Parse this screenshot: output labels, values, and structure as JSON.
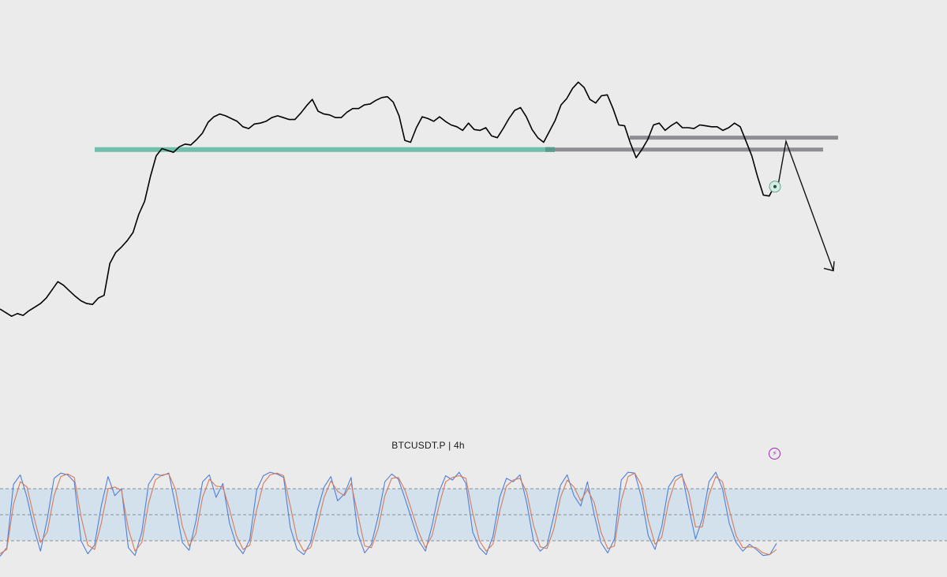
{
  "header": {
    "symbol": "BTCUSDT.P",
    "separator": "|",
    "timeframe": "4h"
  },
  "colors": {
    "background": "#ebebeb",
    "price_line": "#000000",
    "support_zone": "#6fbfaa",
    "broken_level": "#8e8e93",
    "stoch_k": "#4f7fd8",
    "stoch_d": "#d67a5a",
    "stoch_band": "#d3e1ec",
    "alert_icon": "#9c27b0"
  },
  "icons": {
    "alert": "lightning-alert-icon",
    "marker": "circle-marker-icon",
    "projection": "arrow-down-icon"
  },
  "chart_data": [
    {
      "type": "line",
      "series": [
        {
          "values": [
            100.0,
            99.6,
            99.2,
            99.5,
            99.3,
            99.8,
            100.2,
            100.6,
            101.2,
            102.1,
            103.0,
            102.6,
            102.0,
            101.4,
            100.9,
            100.6,
            100.5,
            101.2,
            101.5,
            105.0,
            106.2,
            106.8,
            107.5,
            108.4,
            110.4,
            111.8,
            114.5,
            116.8,
            117.6,
            117.4,
            117.2,
            117.8,
            118.1,
            118.0,
            118.6,
            119.3,
            120.5,
            121.1,
            121.4,
            121.2,
            120.9,
            120.6,
            120.0,
            119.8,
            120.3,
            120.4,
            120.6,
            121.0,
            121.2,
            121.0,
            120.8,
            120.8,
            121.5,
            122.3,
            123.0,
            121.7,
            121.4,
            121.3,
            121.0,
            121.0,
            121.6,
            122.0,
            122.0,
            122.4,
            122.5,
            122.9,
            123.2,
            123.3,
            122.7,
            121.2,
            118.5,
            118.3,
            119.9,
            121.1,
            120.9,
            120.6,
            121.1,
            120.6,
            120.2,
            120.0,
            119.6,
            120.4,
            119.7,
            119.6,
            119.9,
            119.0,
            118.8,
            119.8,
            120.9,
            121.8,
            122.1,
            121.1,
            119.7,
            118.8,
            118.3,
            119.5,
            120.7,
            122.4,
            123.1,
            124.2,
            124.9,
            124.3,
            123.0,
            122.6,
            123.4,
            123.5,
            122.0,
            120.2,
            120.1,
            118.2,
            116.6,
            117.5,
            118.6,
            120.2,
            120.4,
            119.6,
            120.1,
            120.5,
            119.9,
            119.9,
            119.8,
            120.2,
            120.1,
            120.0,
            120.0,
            119.6,
            119.9,
            120.4,
            120.0,
            118.4,
            116.8,
            114.5,
            112.5,
            112.4,
            113.6
          ]
        }
      ],
      "annotations": {
        "support_zone": {
          "price": 117.5
        },
        "broken_support": {
          "price": 117.5
        },
        "resistance_level": {
          "price": 118.8
        },
        "projection": {
          "from": 113.6,
          "peak": 118.4,
          "target": 104.2
        }
      },
      "grid": false,
      "legend": "none"
    },
    {
      "type": "line",
      "ylim": [
        0,
        100
      ],
      "bands": [
        20,
        50,
        80
      ],
      "series": [
        {
          "values": [
            2,
            12,
            85,
            96,
            70,
            35,
            8,
            45,
            92,
            98,
            96,
            88,
            20,
            5,
            15,
            60,
            94,
            72,
            80,
            12,
            3,
            30,
            85,
            97,
            95,
            98,
            60,
            18,
            9,
            42,
            88,
            96,
            70,
            86,
            40,
            15,
            5,
            22,
            78,
            95,
            99,
            97,
            93,
            35,
            10,
            4,
            18,
            55,
            82,
            94,
            66,
            74,
            93,
            28,
            6,
            16,
            48,
            88,
            97,
            91,
            68,
            44,
            20,
            8,
            38,
            76,
            95,
            90,
            99,
            86,
            30,
            12,
            4,
            25,
            70,
            92,
            88,
            96,
            64,
            20,
            8,
            15,
            48,
            84,
            96,
            72,
            60,
            88,
            50,
            18,
            6,
            22,
            90,
            99,
            98,
            70,
            26,
            10,
            36,
            82,
            94,
            97,
            58,
            22,
            45,
            88,
            99,
            80,
            40,
            18,
            8,
            16,
            10,
            3,
            4,
            17
          ]
        },
        {
          "values": [
            5,
            10,
            62,
            88,
            82,
            48,
            18,
            30,
            72,
            94,
            97,
            93,
            48,
            15,
            10,
            40,
            80,
            82,
            78,
            34,
            8,
            18,
            63,
            90,
            96,
            97,
            79,
            37,
            14,
            28,
            70,
            91,
            83,
            82,
            56,
            26,
            10,
            15,
            55,
            86,
            96,
            98,
            95,
            60,
            22,
            8,
            12,
            38,
            70,
            89,
            77,
            72,
            86,
            50,
            14,
            12,
            34,
            72,
            92,
            93,
            78,
            54,
            30,
            12,
            26,
            60,
            88,
            93,
            95,
            92,
            52,
            20,
            8,
            16,
            54,
            83,
            90,
            92,
            76,
            38,
            13,
            11,
            33,
            70,
            90,
            82,
            66,
            79,
            64,
            30,
            11,
            14,
            66,
            94,
            98,
            84,
            44,
            16,
            24,
            64,
            89,
            95,
            75,
            36,
            36,
            73,
            94,
            88,
            56,
            26,
            12,
            13,
            12,
            6,
            4,
            10
          ]
        }
      ],
      "grid": false,
      "legend": "none"
    }
  ]
}
